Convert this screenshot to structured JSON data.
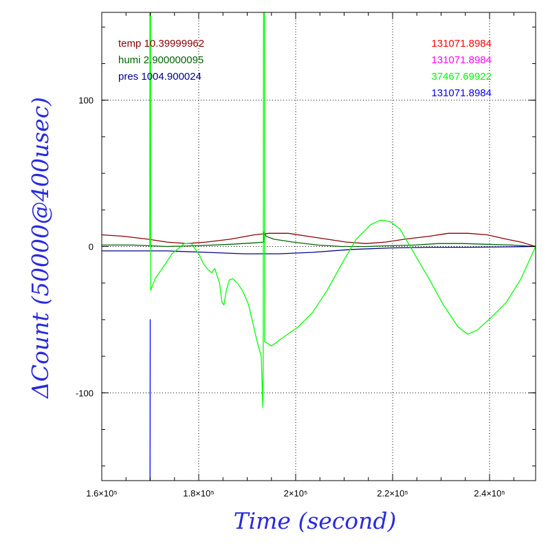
{
  "chart_data": {
    "type": "line",
    "xlabel": "Time (second)",
    "ylabel": "ΔCount (50000@400usec)",
    "xlim": [
      158500,
      248000
    ],
    "ylim": [
      -160,
      160
    ],
    "grid": true,
    "x_ticks": [
      {
        "value": 158500,
        "label": "1.6×10⁵"
      },
      {
        "value": 178500,
        "label": "1.8×10⁵"
      },
      {
        "value": 198500,
        "label": "2×10⁵"
      },
      {
        "value": 218500,
        "label": "2.2×10⁵"
      },
      {
        "value": 238500,
        "label": "2.4×10⁵"
      }
    ],
    "y_ticks": [
      {
        "value": 100,
        "label": "100"
      },
      {
        "value": 0,
        "label": "0"
      },
      {
        "value": -100,
        "label": "-100"
      }
    ],
    "annotations_left": [
      {
        "text": "temp 10.39999962",
        "color": "#8b0000"
      },
      {
        "text": "humi 2.900000095",
        "color": "#006400"
      },
      {
        "text": "pres 1004.900024",
        "color": "#00008b"
      }
    ],
    "annotations_right": [
      {
        "text": "131071.8984",
        "color": "#ff0000"
      },
      {
        "text": "131071.8984",
        "color": "#ff00ff"
      },
      {
        "text": "37467.69922",
        "color": "#00ff00"
      },
      {
        "text": "131071.8984",
        "color": "#0000ff"
      }
    ],
    "series": [
      {
        "color": "#8b0000",
        "points": [
          [
            158500,
            8
          ],
          [
            163000,
            7
          ],
          [
            168000,
            5
          ],
          [
            172000,
            3
          ],
          [
            176000,
            2
          ],
          [
            180000,
            3
          ],
          [
            185000,
            5
          ],
          [
            190000,
            8
          ],
          [
            193000,
            9
          ],
          [
            197000,
            9
          ],
          [
            201000,
            7
          ],
          [
            205000,
            5
          ],
          [
            209000,
            3
          ],
          [
            213000,
            2
          ],
          [
            217000,
            3
          ],
          [
            221000,
            5
          ],
          [
            226000,
            7
          ],
          [
            230000,
            9
          ],
          [
            234000,
            9
          ],
          [
            238000,
            8
          ],
          [
            242000,
            5
          ],
          [
            245000,
            3
          ],
          [
            248000,
            0
          ]
        ]
      },
      {
        "color": "#006400",
        "points": [
          [
            158500,
            1
          ],
          [
            165000,
            1
          ],
          [
            172000,
            0
          ],
          [
            178000,
            0.5
          ],
          [
            185000,
            1.5
          ],
          [
            190000,
            2.5
          ],
          [
            191900,
            3
          ],
          [
            192000,
            10
          ],
          [
            192400,
            7
          ],
          [
            194000,
            5
          ],
          [
            198000,
            3
          ],
          [
            203000,
            1
          ],
          [
            208000,
            0
          ],
          [
            213000,
            0
          ],
          [
            218000,
            0.5
          ],
          [
            223000,
            1
          ],
          [
            228000,
            2
          ],
          [
            233000,
            2
          ],
          [
            238000,
            1.5
          ],
          [
            243000,
            1
          ],
          [
            248000,
            0
          ]
        ]
      },
      {
        "color": "#00008b",
        "points": [
          [
            158500,
            -3
          ],
          [
            165000,
            -3
          ],
          [
            172000,
            -3
          ],
          [
            180000,
            -4
          ],
          [
            188000,
            -5
          ],
          [
            195000,
            -5
          ],
          [
            202000,
            -4
          ],
          [
            210000,
            -2
          ],
          [
            218000,
            -1
          ],
          [
            226000,
            -0.5
          ],
          [
            234000,
            -0.5
          ],
          [
            241000,
            -0.3
          ],
          [
            248000,
            0
          ]
        ]
      },
      {
        "color": "#00ff00",
        "points": [
          [
            168400,
            0
          ],
          [
            168450,
            300
          ],
          [
            168550,
            300
          ],
          [
            168600,
            -30
          ],
          [
            169500,
            -22
          ],
          [
            171000,
            -15
          ],
          [
            173000,
            -5
          ],
          [
            175500,
            2
          ],
          [
            177000,
            2
          ],
          [
            178500,
            -5
          ],
          [
            179500,
            -12
          ],
          [
            180500,
            -16
          ],
          [
            181200,
            -18
          ],
          [
            181800,
            -15
          ],
          [
            182300,
            -20
          ],
          [
            182800,
            -25
          ],
          [
            183300,
            -38
          ],
          [
            183700,
            -40
          ],
          [
            184200,
            -30
          ],
          [
            184800,
            -23
          ],
          [
            185500,
            -22
          ],
          [
            186500,
            -25
          ],
          [
            187500,
            -30
          ],
          [
            188200,
            -35
          ],
          [
            188800,
            -40
          ],
          [
            189500,
            -50
          ],
          [
            190200,
            -60
          ],
          [
            190800,
            -68
          ],
          [
            191400,
            -75
          ],
          [
            191700,
            -110
          ],
          [
            191800,
            -80
          ],
          [
            191900,
            300
          ],
          [
            192050,
            300
          ],
          [
            192100,
            -65
          ],
          [
            193500,
            -68
          ],
          [
            196000,
            -62
          ],
          [
            199000,
            -55
          ],
          [
            202000,
            -45
          ],
          [
            205000,
            -30
          ],
          [
            208000,
            -12
          ],
          [
            211000,
            5
          ],
          [
            214000,
            15
          ],
          [
            216000,
            18
          ],
          [
            218000,
            17
          ],
          [
            220000,
            12
          ],
          [
            223000,
            -5
          ],
          [
            226000,
            -22
          ],
          [
            229000,
            -40
          ],
          [
            232000,
            -55
          ],
          [
            234000,
            -60
          ],
          [
            236000,
            -57
          ],
          [
            239000,
            -48
          ],
          [
            242000,
            -38
          ],
          [
            245000,
            -22
          ],
          [
            248000,
            0
          ]
        ]
      },
      {
        "color": "#0000ff",
        "points": [
          [
            168350,
            -160
          ],
          [
            168450,
            -160
          ],
          [
            168500,
            -50
          ],
          [
            168550,
            -50
          ]
        ]
      }
    ]
  }
}
